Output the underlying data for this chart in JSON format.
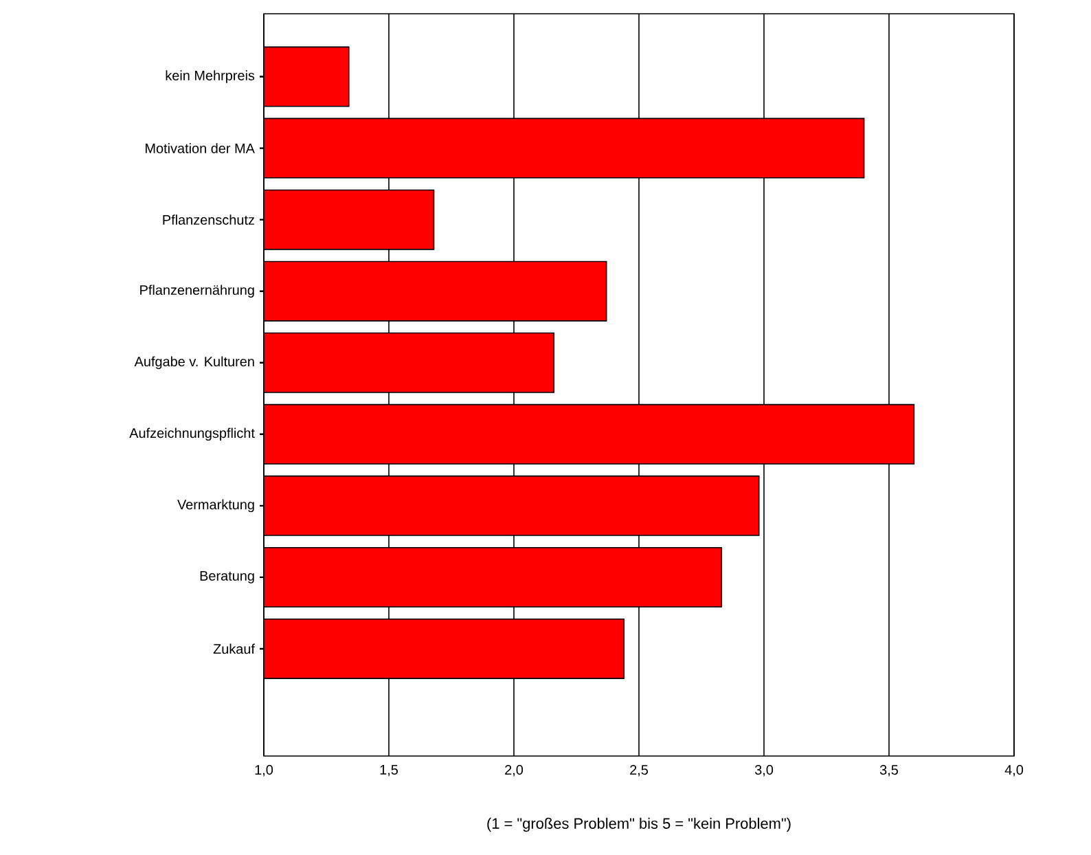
{
  "chart_data": {
    "type": "bar",
    "orientation": "horizontal",
    "categories": [
      "kein Mehrpreis",
      "Motivation der MA",
      "Pflanzenschutz",
      "Pflanzenernährung",
      "Aufgabe v. Kulturen",
      "Aufzeichnungspflicht",
      "Vermarktung",
      "Beratung",
      "Zukauf"
    ],
    "values": [
      1.34,
      3.4,
      1.68,
      2.37,
      2.16,
      3.6,
      2.98,
      2.83,
      2.44
    ],
    "color": "#ff0000",
    "xlim": [
      1,
      4
    ],
    "xticks": [
      {
        "value": 1,
        "label": "1,0"
      },
      {
        "value": 1.5,
        "label": "1,5"
      },
      {
        "value": 2,
        "label": "2,0"
      },
      {
        "value": 2.5,
        "label": "2,5"
      },
      {
        "value": 3,
        "label": "3,0"
      },
      {
        "value": 3.5,
        "label": "3,5"
      },
      {
        "value": 4,
        "label": "4,0"
      }
    ],
    "grid": "x",
    "annotations": [
      "(1 = \"großes Problem\" bis 5 = \"kein Problem\")"
    ]
  }
}
